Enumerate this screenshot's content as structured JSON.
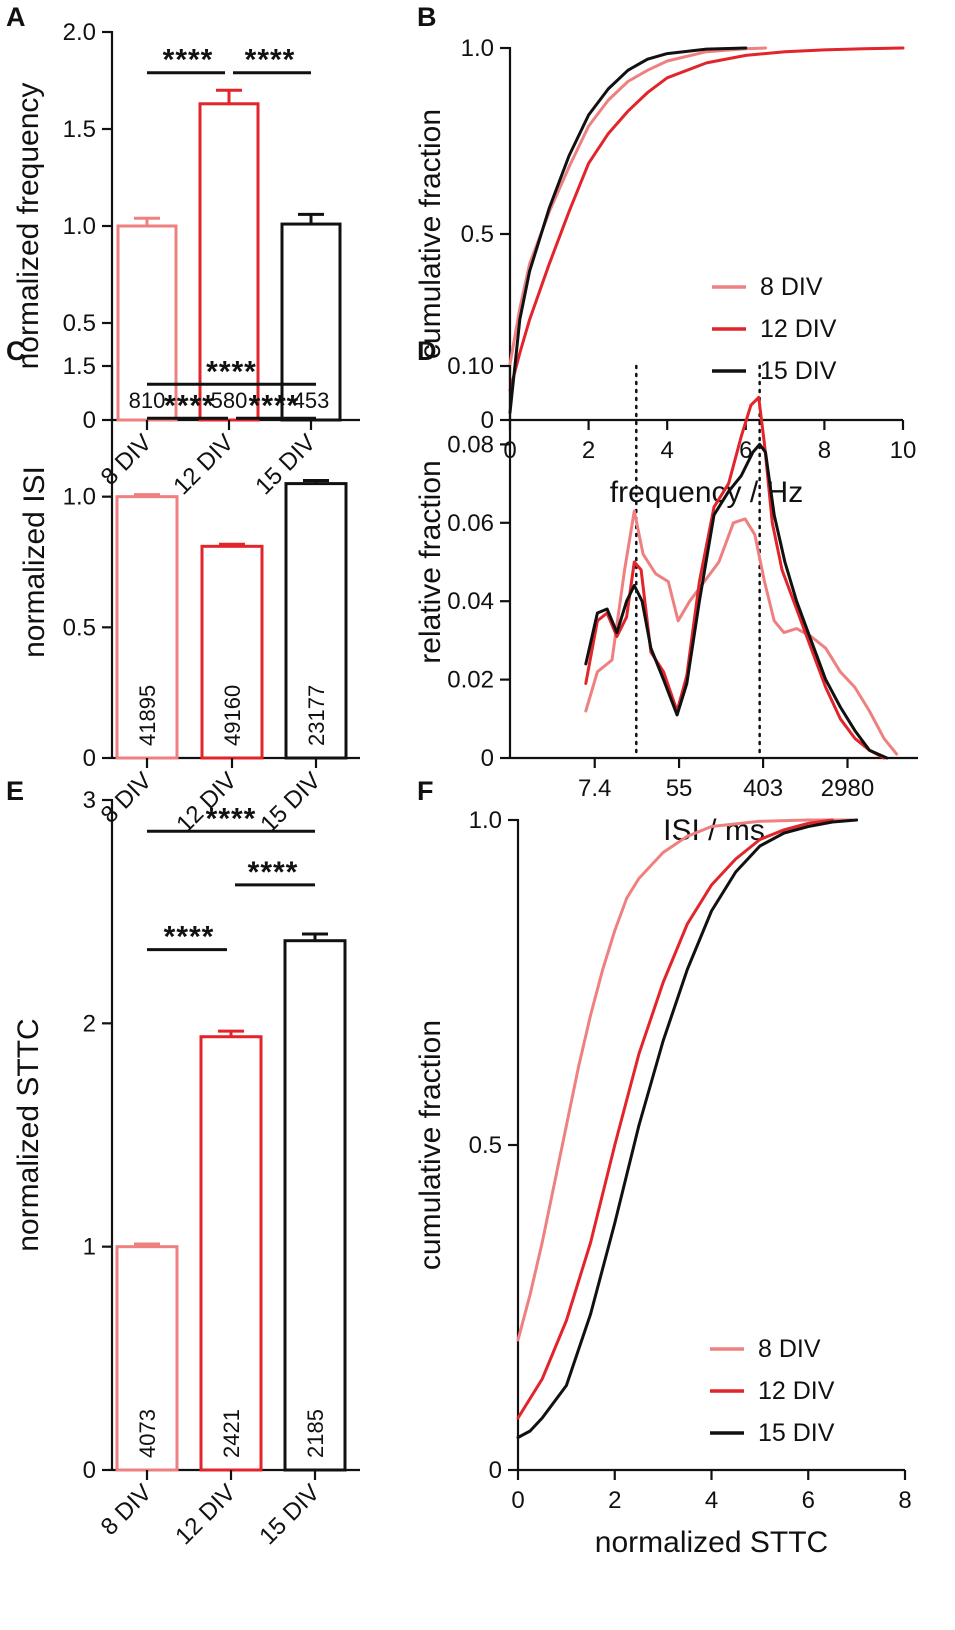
{
  "colors": {
    "div8": "#ef8080",
    "div12": "#e2242b",
    "div15": "#111111"
  },
  "chart_data": [
    {
      "panel": "A",
      "type": "bar",
      "ylabel": "normalized frequency",
      "xlabel": "",
      "ylim": [
        0,
        2.0
      ],
      "yticks": [
        0,
        0.5,
        1.0,
        1.5,
        2.0
      ],
      "ytick_labels": [
        "0",
        "0.5",
        "1.0",
        "1.5",
        "2.0"
      ],
      "categories": [
        "8 DIV",
        "12 DIV",
        "15 DIV"
      ],
      "values": [
        1.0,
        1.63,
        1.01
      ],
      "errors": [
        0.04,
        0.07,
        0.05
      ],
      "n_labels": [
        "810",
        "580",
        "453"
      ],
      "n_rotated": false,
      "significance": [
        {
          "from": 0,
          "to": 1,
          "label": "****",
          "y": 1.79
        },
        {
          "from": 1,
          "to": 2,
          "label": "****",
          "y": 1.79
        }
      ]
    },
    {
      "panel": "B",
      "type": "line",
      "ylabel": "cumulative fraction",
      "xlabel": "frequency / Hz",
      "xlim": [
        0,
        10
      ],
      "ylim": [
        0,
        1.0
      ],
      "xticks": [
        0,
        2,
        4,
        6,
        8,
        10
      ],
      "xtick_labels": [
        "0",
        "2",
        "4",
        "6",
        "8",
        "10"
      ],
      "yticks": [
        0,
        0.5,
        1.0
      ],
      "ytick_labels": [
        "0",
        "0.5",
        "1.0"
      ],
      "legend": [
        "8 DIV",
        "12 DIV",
        "15 DIV"
      ],
      "series": [
        {
          "name": "8 DIV",
          "x": [
            0,
            0.25,
            0.5,
            1.0,
            1.5,
            2.0,
            2.5,
            3.0,
            3.5,
            4.0,
            5.0,
            6.0,
            6.5
          ],
          "y": [
            0.15,
            0.3,
            0.42,
            0.56,
            0.68,
            0.79,
            0.86,
            0.91,
            0.94,
            0.965,
            0.99,
            0.998,
            1.0
          ]
        },
        {
          "name": "12 DIV",
          "x": [
            0,
            0.25,
            0.5,
            1.0,
            1.5,
            2.0,
            2.5,
            3.0,
            3.5,
            4.0,
            5.0,
            6.0,
            7.0,
            8.0,
            9.0,
            10.0
          ],
          "y": [
            0.08,
            0.18,
            0.27,
            0.42,
            0.56,
            0.69,
            0.77,
            0.83,
            0.88,
            0.92,
            0.96,
            0.98,
            0.99,
            0.995,
            0.998,
            1.0
          ]
        },
        {
          "name": "15 DIV",
          "x": [
            0,
            0.25,
            0.5,
            1.0,
            1.5,
            2.0,
            2.5,
            3.0,
            3.5,
            4.0,
            5.0,
            6.0
          ],
          "y": [
            0.02,
            0.27,
            0.4,
            0.57,
            0.71,
            0.82,
            0.89,
            0.94,
            0.97,
            0.985,
            0.997,
            1.0
          ]
        }
      ]
    },
    {
      "panel": "C",
      "type": "bar",
      "ylabel": "normalized ISI",
      "xlabel": "",
      "ylim": [
        0,
        1.5
      ],
      "yticks": [
        0,
        0.5,
        1.0,
        1.5
      ],
      "ytick_labels": [
        "0",
        "0.5",
        "1.0",
        "1.5"
      ],
      "categories": [
        "8 DIV",
        "12 DIV",
        "15 DIV"
      ],
      "values": [
        1.0,
        0.81,
        1.05
      ],
      "errors": [
        0.008,
        0.008,
        0.012
      ],
      "n_labels": [
        "41895",
        "49160",
        "23177"
      ],
      "n_rotated": true,
      "significance": [
        {
          "from": 0,
          "to": 2,
          "label": "****",
          "y": 1.43
        },
        {
          "from": 0,
          "to": 1,
          "label": "****",
          "y": 1.3
        },
        {
          "from": 1,
          "to": 2,
          "label": "****",
          "y": 1.3
        }
      ]
    },
    {
      "panel": "D",
      "type": "line",
      "ylabel": "relative fraction",
      "xlabel": "ISI / ms",
      "xlim": [
        0,
        4.2
      ],
      "ylim": [
        0,
        0.1
      ],
      "xticks": [
        0.8722,
        1.7404,
        2.6053,
        3.4742
      ],
      "xtick_labels": [
        "7.4",
        "55",
        "403",
        "2980"
      ],
      "yticks": [
        0,
        0.02,
        0.04,
        0.06,
        0.08,
        0.1
      ],
      "ytick_labels": [
        "0",
        "0.02",
        "0.04",
        "0.06",
        "0.08",
        "0.10"
      ],
      "vlines": [
        1.3,
        2.57
      ],
      "series": [
        {
          "name": "8 DIV",
          "x": [
            0.78,
            0.9,
            1.05,
            1.18,
            1.28,
            1.37,
            1.5,
            1.63,
            1.73,
            1.85,
            2.0,
            2.15,
            2.3,
            2.42,
            2.52,
            2.62,
            2.72,
            2.82,
            2.95,
            3.1,
            3.25,
            3.4,
            3.55,
            3.7,
            3.85,
            3.98
          ],
          "y": [
            0.012,
            0.022,
            0.025,
            0.048,
            0.063,
            0.052,
            0.047,
            0.045,
            0.035,
            0.04,
            0.045,
            0.05,
            0.06,
            0.061,
            0.057,
            0.045,
            0.035,
            0.032,
            0.033,
            0.031,
            0.028,
            0.022,
            0.018,
            0.012,
            0.005,
            0.001
          ]
        },
        {
          "name": "12 DIV",
          "x": [
            0.78,
            0.9,
            1.0,
            1.1,
            1.2,
            1.28,
            1.35,
            1.45,
            1.58,
            1.72,
            1.82,
            1.95,
            2.1,
            2.25,
            2.38,
            2.48,
            2.56,
            2.62,
            2.7,
            2.8,
            2.95,
            3.1,
            3.25,
            3.4,
            3.55,
            3.7,
            3.85
          ],
          "y": [
            0.019,
            0.035,
            0.037,
            0.031,
            0.036,
            0.05,
            0.048,
            0.027,
            0.022,
            0.012,
            0.021,
            0.045,
            0.064,
            0.07,
            0.082,
            0.09,
            0.092,
            0.08,
            0.06,
            0.048,
            0.038,
            0.028,
            0.018,
            0.01,
            0.005,
            0.002,
            0
          ]
        },
        {
          "name": "15 DIV",
          "x": [
            0.78,
            0.9,
            1.0,
            1.1,
            1.2,
            1.28,
            1.36,
            1.45,
            1.58,
            1.72,
            1.82,
            1.95,
            2.1,
            2.25,
            2.38,
            2.5,
            2.57,
            2.63,
            2.72,
            2.83,
            2.95,
            3.1,
            3.25,
            3.4,
            3.55,
            3.7,
            3.88
          ],
          "y": [
            0.024,
            0.037,
            0.038,
            0.032,
            0.04,
            0.044,
            0.04,
            0.028,
            0.02,
            0.011,
            0.019,
            0.04,
            0.062,
            0.068,
            0.072,
            0.078,
            0.08,
            0.078,
            0.062,
            0.05,
            0.04,
            0.03,
            0.02,
            0.013,
            0.007,
            0.002,
            0
          ]
        }
      ]
    },
    {
      "panel": "E",
      "type": "bar",
      "ylabel": "normalized STTC",
      "xlabel": "",
      "ylim": [
        0,
        3
      ],
      "yticks": [
        0,
        1,
        2,
        3
      ],
      "ytick_labels": [
        "0",
        "1",
        "2",
        "3"
      ],
      "categories": [
        "8 DIV",
        "12 DIV",
        "15 DIV"
      ],
      "values": [
        1.0,
        1.94,
        2.37
      ],
      "errors": [
        0.012,
        0.025,
        0.03
      ],
      "n_labels": [
        "4073",
        "2421",
        "2185"
      ],
      "n_rotated": true,
      "significance": [
        {
          "from": 0,
          "to": 2,
          "label": "****",
          "y": 2.86
        },
        {
          "from": 1,
          "to": 2,
          "label": "****",
          "y": 2.62
        },
        {
          "from": 0,
          "to": 1,
          "label": "****",
          "y": 2.33
        }
      ]
    },
    {
      "panel": "F",
      "type": "line",
      "ylabel": "cumulative fraction",
      "xlabel": "normalized STTC",
      "xlim": [
        0,
        8
      ],
      "ylim": [
        0,
        1.0
      ],
      "xticks": [
        0,
        2,
        4,
        6,
        8
      ],
      "xtick_labels": [
        "0",
        "2",
        "4",
        "6",
        "8"
      ],
      "yticks": [
        0,
        0.5,
        1.0
      ],
      "ytick_labels": [
        "0",
        "0.5",
        "1.0"
      ],
      "legend": [
        "8 DIV",
        "12 DIV",
        "15 DIV"
      ],
      "series": [
        {
          "name": "8 DIV",
          "x": [
            0,
            0.25,
            0.5,
            0.75,
            1.0,
            1.25,
            1.5,
            1.75,
            2.0,
            2.25,
            2.5,
            3.0,
            3.5,
            4.0,
            5.0,
            6.0,
            6.9
          ],
          "y": [
            0.2,
            0.27,
            0.35,
            0.44,
            0.53,
            0.62,
            0.7,
            0.77,
            0.83,
            0.88,
            0.91,
            0.95,
            0.975,
            0.99,
            0.998,
            1.0,
            1.0
          ]
        },
        {
          "name": "12 DIV",
          "x": [
            0,
            0.5,
            1.0,
            1.5,
            2.0,
            2.5,
            3.0,
            3.5,
            4.0,
            4.5,
            5.0,
            5.5,
            6.0,
            6.5
          ],
          "y": [
            0.08,
            0.14,
            0.23,
            0.35,
            0.5,
            0.64,
            0.75,
            0.84,
            0.9,
            0.94,
            0.97,
            0.985,
            0.995,
            1.0
          ]
        },
        {
          "name": "15 DIV",
          "x": [
            0,
            0.25,
            0.5,
            1.0,
            1.5,
            2.0,
            2.5,
            3.0,
            3.5,
            4.0,
            4.5,
            5.0,
            5.5,
            6.0,
            6.5,
            7.0
          ],
          "y": [
            0.05,
            0.06,
            0.08,
            0.13,
            0.24,
            0.38,
            0.53,
            0.66,
            0.77,
            0.86,
            0.92,
            0.96,
            0.98,
            0.99,
            0.997,
            1.0
          ]
        }
      ]
    }
  ]
}
